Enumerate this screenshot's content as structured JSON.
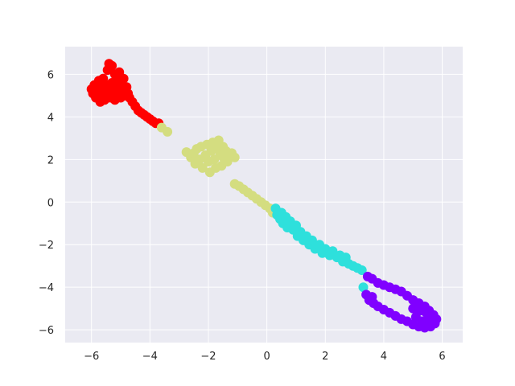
{
  "chart_data": {
    "type": "scatter",
    "title": "",
    "xlabel": "",
    "ylabel": "",
    "xlim": [
      -6.9,
      6.7
    ],
    "ylim": [
      -6.6,
      7.3
    ],
    "grid": true,
    "legend": "none",
    "background_color": "#eaeaf2",
    "grid_color": "#ffffff",
    "x_ticks": [
      -6,
      -4,
      -2,
      0,
      2,
      4,
      6
    ],
    "y_ticks": [
      -6,
      -4,
      -2,
      0,
      2,
      4,
      6
    ],
    "series": [
      {
        "color": "#ff0000",
        "points": [
          [
            -6.0,
            5.3
          ],
          [
            -5.95,
            5.1
          ],
          [
            -5.9,
            5.5
          ],
          [
            -5.85,
            4.9
          ],
          [
            -5.8,
            5.3
          ],
          [
            -5.75,
            5.7
          ],
          [
            -5.7,
            5.0
          ],
          [
            -5.7,
            4.7
          ],
          [
            -5.65,
            5.4
          ],
          [
            -5.6,
            5.2
          ],
          [
            -5.6,
            5.8
          ],
          [
            -5.55,
            4.8
          ],
          [
            -5.5,
            5.5
          ],
          [
            -5.5,
            5.0
          ],
          [
            -5.45,
            6.2
          ],
          [
            -5.4,
            6.5
          ],
          [
            -5.4,
            5.3
          ],
          [
            -5.35,
            4.9
          ],
          [
            -5.3,
            6.4
          ],
          [
            -5.3,
            5.6
          ],
          [
            -5.25,
            5.1
          ],
          [
            -5.2,
            6.0
          ],
          [
            -5.2,
            4.8
          ],
          [
            -5.15,
            5.4
          ],
          [
            -5.1,
            5.8
          ],
          [
            -5.1,
            5.1
          ],
          [
            -5.05,
            6.1
          ],
          [
            -5.0,
            5.5
          ],
          [
            -5.0,
            4.9
          ],
          [
            -4.95,
            5.2
          ],
          [
            -4.9,
            5.8
          ],
          [
            -4.85,
            5.0
          ],
          [
            -4.8,
            5.4
          ],
          [
            -4.75,
            5.1
          ],
          [
            -4.7,
            4.9
          ],
          [
            -4.6,
            4.7
          ],
          [
            -4.5,
            4.5
          ],
          [
            -4.4,
            4.3
          ],
          [
            -4.3,
            4.2
          ],
          [
            -4.2,
            4.1
          ],
          [
            -4.1,
            4.0
          ],
          [
            -4.0,
            3.9
          ],
          [
            -3.9,
            3.8
          ],
          [
            -3.8,
            3.7
          ],
          [
            -3.7,
            3.7
          ]
        ]
      },
      {
        "color": "#d4dd80",
        "points": [
          [
            -3.6,
            3.5
          ],
          [
            -3.4,
            3.3
          ],
          [
            -2.75,
            2.35
          ],
          [
            -2.6,
            2.1
          ],
          [
            -2.5,
            2.3
          ],
          [
            -2.45,
            1.8
          ],
          [
            -2.4,
            2.5
          ],
          [
            -2.3,
            2.0
          ],
          [
            -2.25,
            2.6
          ],
          [
            -2.2,
            1.6
          ],
          [
            -2.1,
            2.2
          ],
          [
            -2.05,
            2.7
          ],
          [
            -2.0,
            1.9
          ],
          [
            -1.95,
            1.4
          ],
          [
            -1.9,
            2.4
          ],
          [
            -1.85,
            2.8
          ],
          [
            -1.8,
            2.0
          ],
          [
            -1.75,
            1.6
          ],
          [
            -1.7,
            2.5
          ],
          [
            -1.65,
            2.9
          ],
          [
            -1.6,
            2.2
          ],
          [
            -1.55,
            1.7
          ],
          [
            -1.5,
            2.6
          ],
          [
            -1.45,
            2.0
          ],
          [
            -1.4,
            2.4
          ],
          [
            -1.35,
            1.9
          ],
          [
            -1.3,
            2.2
          ],
          [
            -1.2,
            2.3
          ],
          [
            -1.1,
            2.1
          ],
          [
            -1.1,
            0.85
          ],
          [
            -0.95,
            0.75
          ],
          [
            -0.8,
            0.6
          ],
          [
            -0.65,
            0.45
          ],
          [
            -0.5,
            0.3
          ],
          [
            -0.35,
            0.15
          ],
          [
            -0.2,
            0.0
          ],
          [
            -0.05,
            -0.15
          ],
          [
            0.1,
            -0.3
          ],
          [
            0.2,
            -0.5
          ]
        ]
      },
      {
        "color": "#2ee0dc",
        "points": [
          [
            0.3,
            -0.3
          ],
          [
            0.35,
            -0.6
          ],
          [
            0.45,
            -0.8
          ],
          [
            0.5,
            -0.5
          ],
          [
            0.55,
            -1.0
          ],
          [
            0.65,
            -0.7
          ],
          [
            0.7,
            -1.2
          ],
          [
            0.8,
            -0.9
          ],
          [
            0.9,
            -1.3
          ],
          [
            1.0,
            -1.1
          ],
          [
            1.05,
            -1.6
          ],
          [
            1.15,
            -1.4
          ],
          [
            1.25,
            -1.8
          ],
          [
            1.35,
            -1.6
          ],
          [
            1.45,
            -2.0
          ],
          [
            1.55,
            -1.8
          ],
          [
            1.65,
            -2.2
          ],
          [
            1.8,
            -2.0
          ],
          [
            1.9,
            -2.4
          ],
          [
            2.0,
            -2.2
          ],
          [
            2.15,
            -2.5
          ],
          [
            2.25,
            -2.3
          ],
          [
            2.4,
            -2.6
          ],
          [
            2.5,
            -2.5
          ],
          [
            2.6,
            -2.8
          ],
          [
            2.7,
            -2.6
          ],
          [
            2.8,
            -2.9
          ],
          [
            2.95,
            -3.0
          ],
          [
            3.1,
            -3.1
          ],
          [
            3.25,
            -3.2
          ],
          [
            3.3,
            -4.0
          ]
        ]
      },
      {
        "color": "#8000ff",
        "points": [
          [
            3.45,
            -3.5
          ],
          [
            3.6,
            -3.6
          ],
          [
            3.8,
            -3.8
          ],
          [
            4.0,
            -3.9
          ],
          [
            4.2,
            -4.0
          ],
          [
            4.4,
            -4.1
          ],
          [
            4.6,
            -4.2
          ],
          [
            4.8,
            -4.4
          ],
          [
            5.0,
            -4.6
          ],
          [
            5.2,
            -4.75
          ],
          [
            5.4,
            -4.9
          ],
          [
            5.55,
            -5.1
          ],
          [
            5.7,
            -5.3
          ],
          [
            5.8,
            -5.5
          ],
          [
            5.75,
            -5.7
          ],
          [
            5.6,
            -5.85
          ],
          [
            5.4,
            -5.9
          ],
          [
            5.2,
            -5.85
          ],
          [
            5.0,
            -5.75
          ],
          [
            4.8,
            -5.6
          ],
          [
            4.6,
            -5.5
          ],
          [
            4.4,
            -5.35
          ],
          [
            4.2,
            -5.2
          ],
          [
            4.0,
            -5.05
          ],
          [
            3.8,
            -4.9
          ],
          [
            3.65,
            -4.75
          ],
          [
            3.5,
            -4.6
          ],
          [
            3.4,
            -4.35
          ],
          [
            3.6,
            -4.45
          ],
          [
            5.1,
            -5.4
          ],
          [
            5.3,
            -5.6
          ],
          [
            5.5,
            -5.5
          ],
          [
            5.65,
            -5.6
          ],
          [
            5.45,
            -5.2
          ],
          [
            5.25,
            -5.1
          ],
          [
            5.0,
            -5.0
          ]
        ]
      }
    ]
  }
}
